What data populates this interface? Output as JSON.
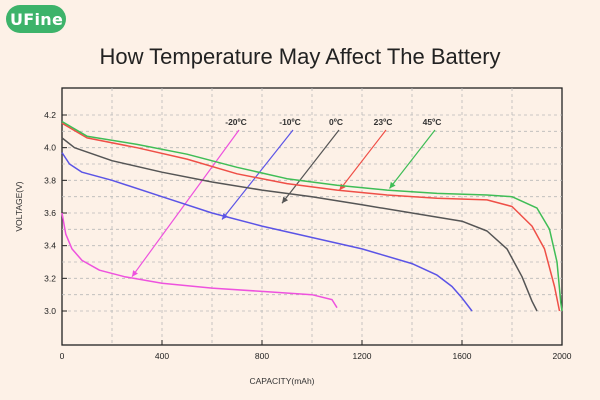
{
  "logo": {
    "text": "UFine",
    "color": "#3db36a"
  },
  "header": {
    "title": "How Temperature May Affect The Battery"
  },
  "chart_data": {
    "type": "line",
    "xlabel": "CAPACITY(mAh)",
    "ylabel": "VOLTAGE(V)",
    "xlim": [
      0,
      2000
    ],
    "ylim": [
      3.0,
      4.2
    ],
    "x_ticks": [
      "0",
      "400",
      "800",
      "1200",
      "1600",
      "2000"
    ],
    "y_ticks": [
      "3.0",
      "3.2",
      "3.4",
      "3.6",
      "3.8",
      "4.0",
      "4.2"
    ],
    "grid": true,
    "series": [
      {
        "name": "-20ºC",
        "color": "#ee52de",
        "points": [
          [
            0,
            3.6
          ],
          [
            15,
            3.47
          ],
          [
            40,
            3.38
          ],
          [
            80,
            3.31
          ],
          [
            150,
            3.25
          ],
          [
            250,
            3.21
          ],
          [
            400,
            3.17
          ],
          [
            600,
            3.14
          ],
          [
            800,
            3.12
          ],
          [
            1000,
            3.1
          ],
          [
            1080,
            3.07
          ],
          [
            1100,
            3.02
          ]
        ],
        "label_xy": [
          -20,
          4.13
        ],
        "arrow_to": [
          280,
          3.21
        ]
      },
      {
        "name": "-10ºC",
        "color": "#5b54e6",
        "points": [
          [
            0,
            3.97
          ],
          [
            30,
            3.9
          ],
          [
            80,
            3.85
          ],
          [
            200,
            3.8
          ],
          [
            400,
            3.7
          ],
          [
            600,
            3.6
          ],
          [
            800,
            3.52
          ],
          [
            1000,
            3.45
          ],
          [
            1200,
            3.38
          ],
          [
            1400,
            3.29
          ],
          [
            1500,
            3.22
          ],
          [
            1560,
            3.15
          ],
          [
            1600,
            3.08
          ],
          [
            1640,
            3.0
          ]
        ],
        "label_xy": [
          -10,
          4.13
        ],
        "arrow_to": [
          640,
          3.56
        ]
      },
      {
        "name": "0ºC",
        "color": "#555555",
        "points": [
          [
            0,
            4.06
          ],
          [
            50,
            4.0
          ],
          [
            200,
            3.92
          ],
          [
            400,
            3.85
          ],
          [
            600,
            3.79
          ],
          [
            800,
            3.74
          ],
          [
            1000,
            3.7
          ],
          [
            1200,
            3.65
          ],
          [
            1400,
            3.6
          ],
          [
            1600,
            3.55
          ],
          [
            1700,
            3.49
          ],
          [
            1780,
            3.38
          ],
          [
            1840,
            3.21
          ],
          [
            1880,
            3.06
          ],
          [
            1900,
            3.0
          ]
        ],
        "label_xy": [
          0,
          4.13
        ],
        "arrow_to": [
          880,
          3.66
        ]
      },
      {
        "name": "23ºC",
        "color": "#ef4f47",
        "points": [
          [
            0,
            4.15
          ],
          [
            100,
            4.06
          ],
          [
            300,
            4.0
          ],
          [
            500,
            3.93
          ],
          [
            700,
            3.84
          ],
          [
            900,
            3.78
          ],
          [
            1100,
            3.74
          ],
          [
            1300,
            3.71
          ],
          [
            1500,
            3.69
          ],
          [
            1700,
            3.68
          ],
          [
            1800,
            3.64
          ],
          [
            1880,
            3.52
          ],
          [
            1930,
            3.38
          ],
          [
            1970,
            3.15
          ],
          [
            1990,
            3.0
          ]
        ],
        "label_xy": [
          23,
          4.13
        ],
        "arrow_to": [
          1110,
          3.74
        ]
      },
      {
        "name": "45ºC",
        "color": "#3fbd56",
        "points": [
          [
            0,
            4.16
          ],
          [
            100,
            4.07
          ],
          [
            300,
            4.02
          ],
          [
            500,
            3.96
          ],
          [
            700,
            3.88
          ],
          [
            900,
            3.81
          ],
          [
            1100,
            3.77
          ],
          [
            1300,
            3.74
          ],
          [
            1500,
            3.72
          ],
          [
            1700,
            3.71
          ],
          [
            1800,
            3.7
          ],
          [
            1900,
            3.63
          ],
          [
            1950,
            3.5
          ],
          [
            1980,
            3.3
          ],
          [
            1995,
            3.05
          ],
          [
            2000,
            3.0
          ]
        ],
        "label_xy": [
          45,
          4.13
        ],
        "arrow_to": [
          1310,
          3.75
        ]
      }
    ]
  }
}
